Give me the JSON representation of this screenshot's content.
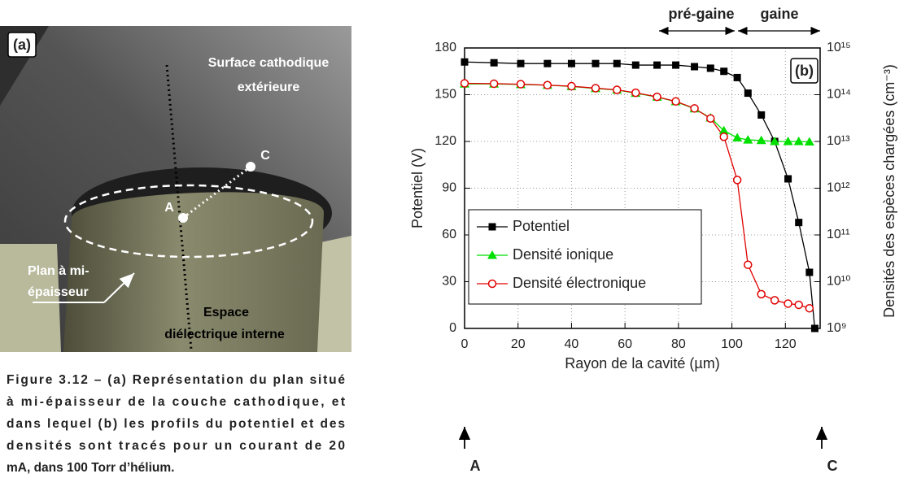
{
  "figure_a": {
    "panel_label": "(a)",
    "labels": [
      "Surface cathodique",
      "extérieure",
      "A",
      "C",
      "Plan à mi-",
      "épaisseur",
      "Espace",
      "diélectrique  interne"
    ]
  },
  "caption": [
    "Figure 3.12 – (a) Représentation du plan situé",
    "à mi-épaisseur de la couche cathodique, et",
    "dans lequel (b) les profils du potentiel et des",
    "densités sont tracés pour un courant de 20",
    "mA, dans 100 Torr d’hélium."
  ],
  "chart_data": {
    "type": "line",
    "xlabel": "Rayon de la cavité (µm)",
    "ylabel": "Potentiel (V)",
    "y2label": "Densités des espèces chargées (cm⁻³)",
    "xlim": [
      0,
      133
    ],
    "xticks": [
      0,
      20,
      40,
      60,
      80,
      100,
      120
    ],
    "ylim": [
      0,
      180
    ],
    "yticks": [
      0,
      30,
      60,
      90,
      120,
      150,
      180
    ],
    "y2lim": [
      1000000000,
      1000000000000000
    ],
    "y2log": true,
    "y2ticks": [
      {
        "value": 1000000000,
        "label": "10⁹"
      },
      {
        "value": 10000000000,
        "label": "10¹⁰"
      },
      {
        "value": 100000000000,
        "label": "10¹¹"
      },
      {
        "value": 1000000000000,
        "label": "10¹²"
      },
      {
        "value": 10000000000000,
        "label": "10¹³"
      },
      {
        "value": 100000000000000,
        "label": "10¹⁴"
      },
      {
        "value": 1000000000000000,
        "label": "10¹⁵"
      }
    ],
    "grid": true,
    "legend": "lower left",
    "panel_label": "(b)",
    "regions": [
      "pré-gaine",
      "gaine"
    ],
    "points": [
      "A",
      "C"
    ],
    "series": [
      {
        "name": "Potentiel",
        "color": "#000000",
        "marker": "square",
        "axis": "y",
        "x": [
          0,
          11,
          21,
          31,
          40,
          49,
          57,
          64,
          72,
          79,
          86,
          92,
          97,
          102,
          106,
          111,
          116,
          121,
          125,
          129,
          131
        ],
        "values": [
          171,
          170.5,
          170,
          170,
          170,
          170,
          170,
          169,
          169,
          169,
          168,
          167,
          165,
          161,
          151,
          137,
          120,
          96,
          68,
          36,
          0
        ]
      },
      {
        "name": "Densité ionique",
        "color": "#00e000",
        "marker": "triangle",
        "axis": "y2",
        "x": [
          0,
          11,
          21,
          31,
          40,
          49,
          57,
          64,
          72,
          79,
          86,
          92,
          97,
          102,
          106,
          111,
          116,
          121,
          125,
          129
        ],
        "values": [
          170000000000000,
          170000000000000,
          165000000000000,
          160000000000000,
          150000000000000,
          136000000000000,
          126000000000000,
          108000000000000,
          89000000000000,
          71000000000000,
          50000000000000,
          32000000000000,
          17000000000000,
          12000000000000,
          10800000000000,
          10500000000000,
          10000000000000,
          10000000000000,
          10000000000000,
          9800000000000
        ]
      },
      {
        "name": "Densité électronique",
        "color": "#e00000",
        "marker": "circle",
        "axis": "y2",
        "x": [
          0,
          11,
          21,
          31,
          40,
          49,
          57,
          64,
          72,
          79,
          86,
          92,
          97,
          102,
          106,
          111,
          116,
          121,
          125,
          129
        ],
        "values": [
          175000000000000,
          172000000000000,
          168000000000000,
          160000000000000,
          152000000000000,
          138000000000000,
          127000000000000,
          110000000000000,
          90000000000000,
          72000000000000,
          51000000000000,
          31000000000000,
          12600000000000,
          1500000000000,
          23000000000,
          5400000000,
          4000000000,
          3400000000,
          3200000000,
          2700000000
        ]
      }
    ]
  }
}
